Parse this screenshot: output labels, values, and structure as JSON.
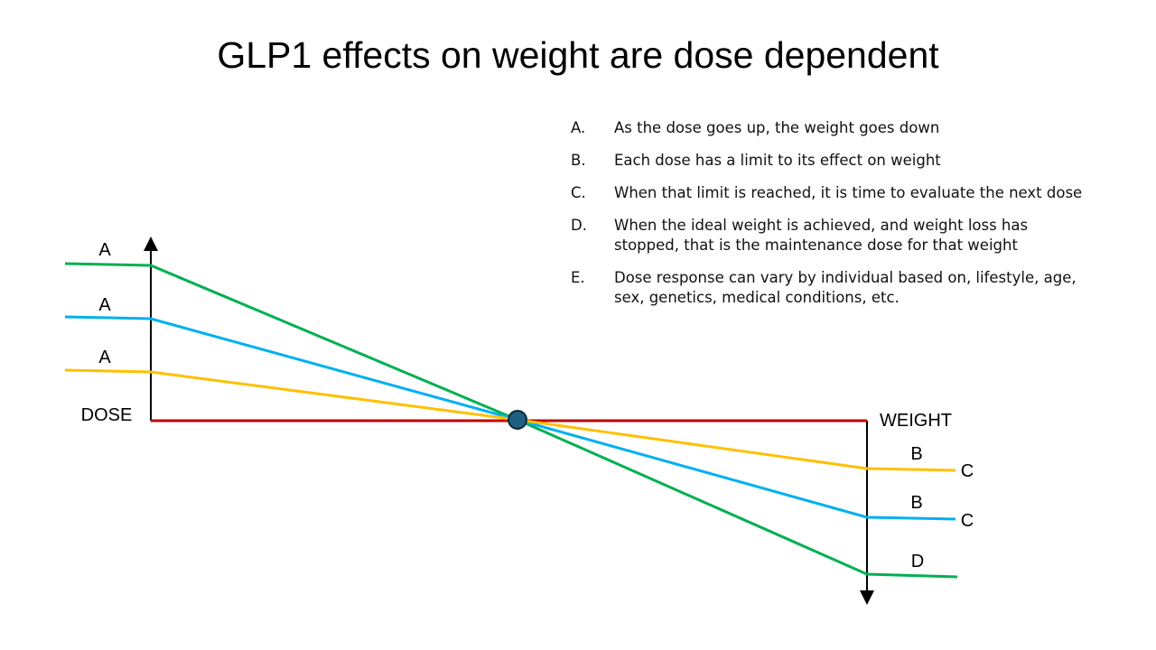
{
  "title": "GLP1 effects on weight are dose dependent",
  "points": [
    {
      "letter": "A.",
      "text": "As the dose goes up, the weight goes down"
    },
    {
      "letter": "B.",
      "text": "Each dose has a limit to its effect on weight"
    },
    {
      "letter": "C.",
      "text": "When that limit is reached, it is time to evaluate the next dose"
    },
    {
      "letter": "D.",
      "text": "When the ideal weight is achieved, and weight loss has stopped, that is the maintenance dose for that weight"
    },
    {
      "letter": "E.",
      "text": "Dose response can vary by individual based on, lifestyle, age, sex, genetics, medical conditions, etc."
    }
  ],
  "diagram": {
    "dose_label": "DOSE",
    "weight_label": "WEIGHT",
    "left_labels": [
      "A",
      "A",
      "A"
    ],
    "right_labels": {
      "high": [
        "B",
        "C"
      ],
      "mid": [
        "B",
        "C"
      ],
      "low": [
        "D"
      ]
    },
    "colors": {
      "high_dose": "#00b050",
      "mid_dose": "#00b0f0",
      "low_dose": "#ffc000",
      "baseline": "#c00000",
      "pivot": "#1f5f7f"
    }
  }
}
